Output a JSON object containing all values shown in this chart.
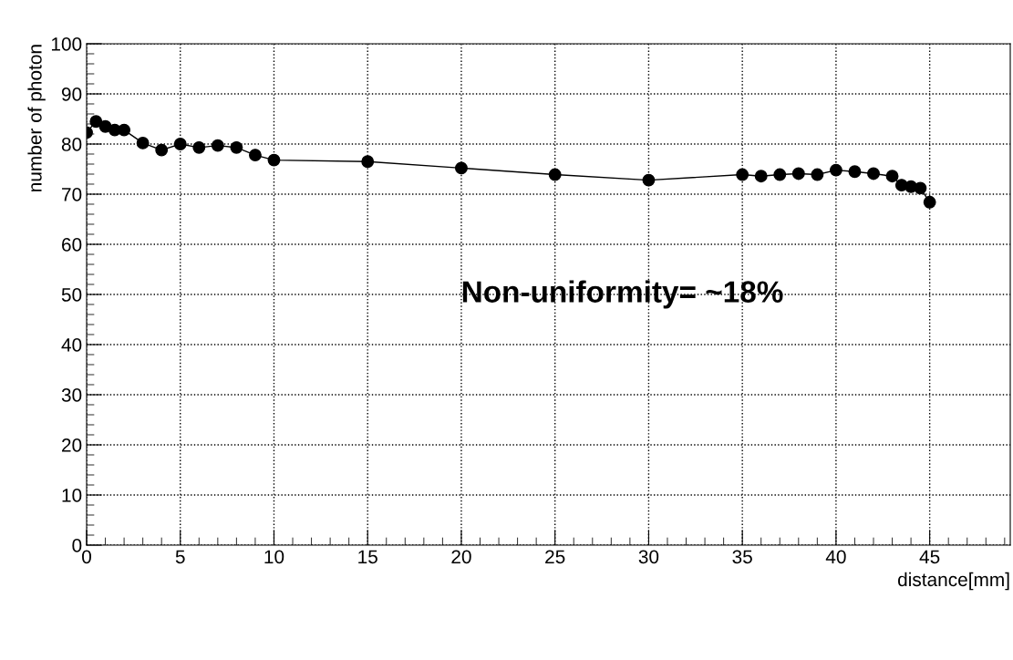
{
  "chart_data": {
    "type": "line",
    "xlabel": "distance[mm]",
    "ylabel": "number of photon",
    "x": [
      0,
      0.5,
      1,
      1.5,
      2,
      3,
      4,
      5,
      6,
      7,
      8,
      9,
      10,
      15,
      20,
      25,
      30,
      35,
      36,
      37,
      38,
      39,
      40,
      41,
      42,
      43,
      43.5,
      44,
      44.5,
      45
    ],
    "series": [
      {
        "color": "#000000",
        "values": [
          82.3,
          84.5,
          83.5,
          82.8,
          82.8,
          80.2,
          78.8,
          80.0,
          79.3,
          79.7,
          79.3,
          77.8,
          76.8,
          76.5,
          75.2,
          73.9,
          72.8,
          73.9,
          73.6,
          73.9,
          74.1,
          73.9,
          74.8,
          74.5,
          74.1,
          73.6,
          71.8,
          71.5,
          71.2,
          68.4
        ]
      }
    ],
    "xlim": [
      0,
      49.3
    ],
    "ylim": [
      0,
      100
    ],
    "xticks": [
      0,
      5,
      10,
      15,
      20,
      25,
      30,
      35,
      40,
      45
    ],
    "yticks": [
      0,
      10,
      20,
      30,
      40,
      50,
      60,
      70,
      80,
      90,
      100
    ],
    "grid": true,
    "marker": "circle",
    "line_style": "solid",
    "annotations": [
      "Non-uniformity= ~18%"
    ]
  }
}
